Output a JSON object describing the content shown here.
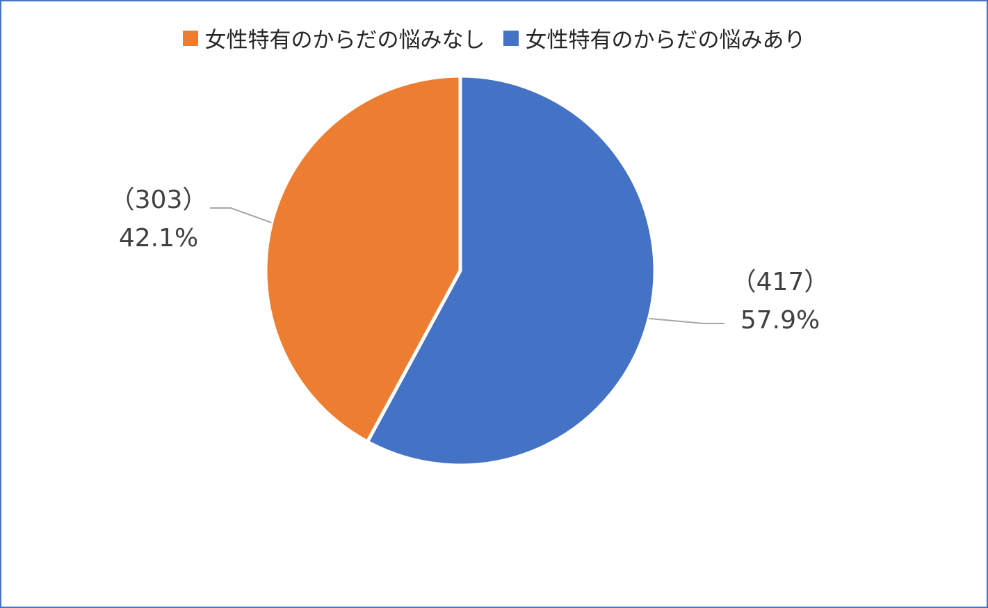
{
  "chart_data": {
    "type": "pie",
    "slices": [
      {
        "name": "女性特有のからだの悩みあり",
        "value": 417,
        "percent": "57.9%",
        "count_label": "（417）",
        "color": "#4472c4"
      },
      {
        "name": "女性特有のからだの悩みなし",
        "value": 303,
        "percent": "42.1%",
        "count_label": "（303）",
        "color": "#ed7d31"
      }
    ],
    "legend": {
      "placement": "top",
      "items": [
        {
          "name": "女性特有のからだの悩みなし",
          "color": "#ed7d31"
        },
        {
          "name": "女性特有のからだの悩みあり",
          "color": "#4472c4"
        }
      ]
    },
    "start_angle": "12 o'clock",
    "direction": "clockwise"
  }
}
